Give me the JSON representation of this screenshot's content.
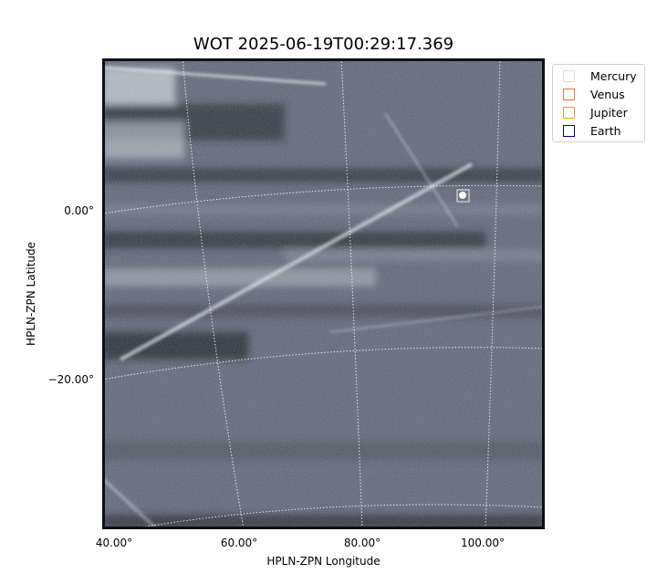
{
  "title": "WOT 2025-06-19T00:29:17.369",
  "axes": {
    "xlabel": "HPLN-ZPN Longitude",
    "ylabel": "HPLN-ZPN Latitude",
    "x_ticks": [
      "40.00°",
      "60.00°",
      "80.00°",
      "100.00°"
    ],
    "y_ticks": [
      "0.00°",
      "−20.00°"
    ]
  },
  "legend": [
    {
      "label": "Mercury",
      "color": "#dddddd"
    },
    {
      "label": "Venus",
      "color": "#e07b39"
    },
    {
      "label": "Jupiter",
      "color": "#e0a800"
    },
    {
      "label": "Earth",
      "color": "#000080"
    }
  ],
  "image": {
    "description_colors": {
      "background": "#5f6478",
      "streak": "#e8ecef",
      "dark_band": "#15171d"
    },
    "marker_icon": "planet-marker-icon"
  }
}
